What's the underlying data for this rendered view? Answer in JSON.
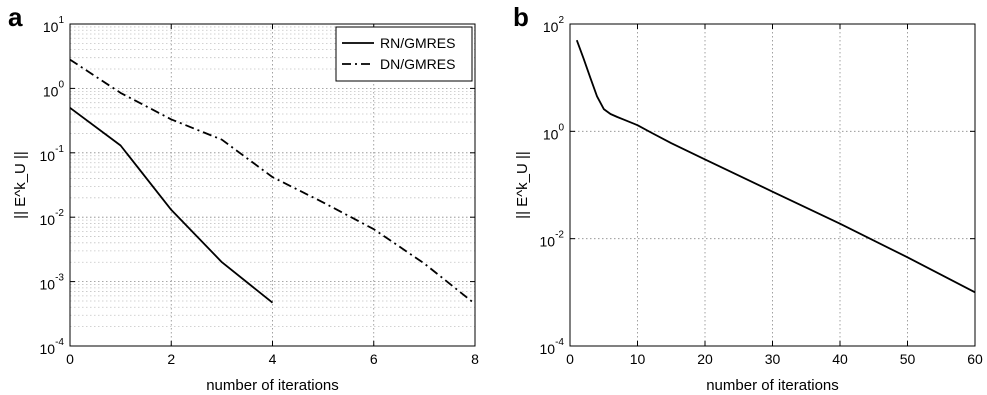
{
  "chart_data": [
    {
      "panel": "a",
      "type": "line",
      "xlabel": "number of iterations",
      "ylabel": "|| E^k_U ||",
      "xlim": [
        0,
        8
      ],
      "ylim": [
        0.0001,
        10
      ],
      "yscale": "log",
      "grid": true,
      "minor_grid": true,
      "legend": "top-right",
      "x_ticks": [
        "0",
        "2",
        "4",
        "6",
        "8"
      ],
      "y_ticks": [
        {
          "base": "10",
          "exp": "-4"
        },
        {
          "base": "10",
          "exp": "-3"
        },
        {
          "base": "10",
          "exp": "-2"
        },
        {
          "base": "10",
          "exp": "-1"
        },
        {
          "base": "10",
          "exp": "0"
        },
        {
          "base": "10",
          "exp": "1"
        }
      ],
      "series": [
        {
          "name": "RN/GMRES",
          "style": "solid",
          "x": [
            0,
            1,
            2,
            3,
            4
          ],
          "y": [
            0.5,
            0.13,
            0.013,
            0.002,
            0.00047
          ]
        },
        {
          "name": "DN/GMRES",
          "style": "dash-dot",
          "x": [
            0,
            1,
            2,
            3,
            4,
            5,
            6,
            7,
            8
          ],
          "y": [
            2.8,
            0.85,
            0.33,
            0.16,
            0.042,
            0.017,
            0.0065,
            0.0019,
            0.00045
          ]
        }
      ]
    },
    {
      "panel": "b",
      "type": "line",
      "xlabel": "number of iterations",
      "ylabel": "|| E^k_U ||",
      "xlim": [
        0,
        60
      ],
      "ylim": [
        0.0001,
        100
      ],
      "yscale": "log",
      "grid": true,
      "minor_grid": false,
      "x_ticks": [
        "0",
        "10",
        "20",
        "30",
        "40",
        "50",
        "60"
      ],
      "y_ticks": [
        {
          "base": "10",
          "exp": "-4"
        },
        {
          "base": "10",
          "exp": "-2"
        },
        {
          "base": "10",
          "exp": "0"
        },
        {
          "base": "10",
          "exp": "2"
        }
      ],
      "series": [
        {
          "style": "solid",
          "x": [
            1,
            2,
            3,
            4,
            5,
            6,
            7,
            8,
            10,
            12,
            15,
            20,
            30,
            40,
            50,
            60
          ],
          "y": [
            50,
            23,
            10,
            4.5,
            2.6,
            2.1,
            1.85,
            1.65,
            1.3,
            0.95,
            0.6,
            0.3,
            0.075,
            0.019,
            0.0045,
            0.001
          ]
        }
      ]
    }
  ]
}
